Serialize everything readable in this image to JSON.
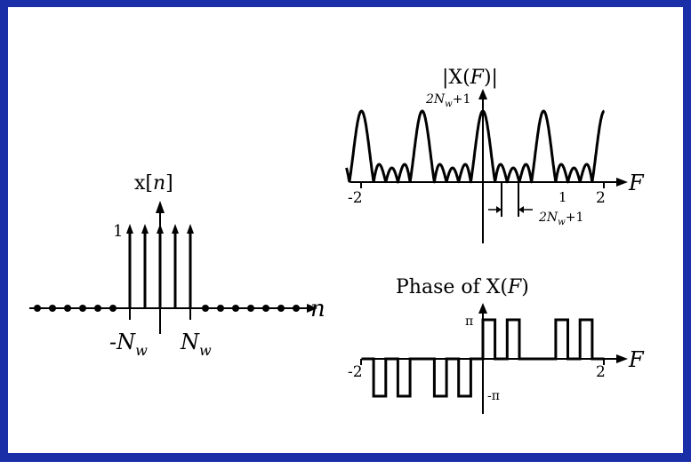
{
  "frame": {
    "border_color": "#1a2ea8",
    "background": "#ffffff",
    "ink": "#000000"
  },
  "signal_plot": {
    "title": "x[",
    "title_var": "n",
    "title_end": "]",
    "amplitude_label": "1",
    "axis_label": "n",
    "neg_tick_label": "-N",
    "pos_tick_label": "N",
    "tick_subscript": "w"
  },
  "magnitude_plot": {
    "title": "|X(",
    "title_var": "F",
    "title_end": ")|",
    "peak_label": "2N",
    "peak_subscript": "w",
    "peak_suffix": "+1",
    "axis_label": "F",
    "x_min_label": "-2",
    "x_max_label": "2",
    "width_numerator": "1",
    "width_denominator": "2N",
    "width_denominator_subscript": "w",
    "width_denominator_suffix": "+1"
  },
  "phase_plot": {
    "title": "Phase of X(",
    "title_var": "F",
    "title_end": ")",
    "pos_label": "π",
    "neg_label": "-π",
    "axis_label": "F",
    "x_min_label": "-2",
    "x_max_label": "2"
  }
}
